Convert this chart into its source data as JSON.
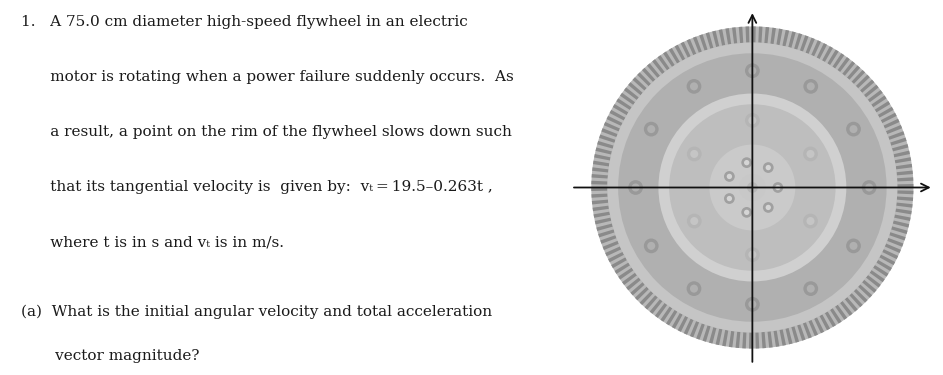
{
  "background_color": "#ffffff",
  "text_line1": "1.   A 75.0 cm diameter high-speed flywheel in an electric",
  "text_line2": "      motor is rotating when a power failure suddenly occurs.  As",
  "text_line3": "      a result, a point on the rim of the flywheel slows down such",
  "text_line4": "      that its tangential velocity is  given by:  vₜ = 19.5–0.263t ,",
  "text_line5": "      where t is in s and vₜ is in m/s.",
  "text_line6": "(a)  What is the initial angular velocity and total acceleration",
  "text_line7": "       vector magnitude?",
  "font_size": 11.0,
  "font_color": "#1a1a1a",
  "flywheel_colors": {
    "teeth_dark": "#8a8a8a",
    "teeth_light": "#aaaaaa",
    "outer_body": "#b8b8b8",
    "main_body": "#c5c5c5",
    "recessed_ring": "#b0b0b0",
    "inner_ring": "#d0d0d0",
    "hub_outer": "#bebebe",
    "hub_inner": "#cacaca",
    "hole_dark": "#a0a0a0",
    "hole_light": "#d5d5d5",
    "center_hole": "#c8c8c8"
  },
  "axis_color": "#111111",
  "figsize": [
    9.43,
    3.75
  ],
  "dpi": 100
}
